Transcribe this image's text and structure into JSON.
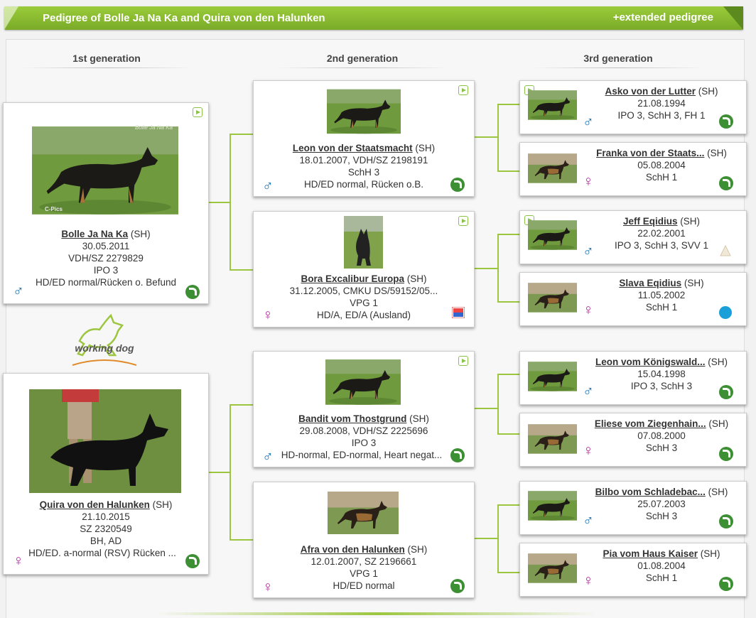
{
  "banner": {
    "title": "Pedigree of Bolle Ja Na Ka and Quira von den Halunken",
    "extended_link": "+extended pedigree"
  },
  "generations": [
    "1st generation",
    "2nd generation",
    "3rd generation"
  ],
  "logo": {
    "text": "working dog"
  },
  "gen1": [
    {
      "name": "Bolle Ja Na Ka",
      "tag": "(SH)",
      "lines": [
        "30.05.2011",
        "VDH/SZ 2279829",
        "IPO 3",
        "HD/ED normal/Rücken o. Befund"
      ],
      "sex": "♂",
      "photo_text": [
        "Bolle Ja Na Ka",
        "C-Pics"
      ]
    },
    {
      "name": "Quira von den Halunken",
      "tag": "(SH)",
      "lines": [
        "21.10.2015",
        "SZ 2320549",
        "BH, AD",
        "HD/ED. a-normal (RSV) Rücken ..."
      ],
      "sex": "♀"
    }
  ],
  "gen2": [
    {
      "name": "Leon von der Staatsmacht",
      "tag": "(SH)",
      "lines": [
        "18.01.2007, VDH/SZ 2198191",
        "SchH 3",
        "HD/ED normal, Rücken o.B."
      ],
      "sex": "♂"
    },
    {
      "name": "Bora Excalibur Europa",
      "tag": "(SH)",
      "lines": [
        "31.12.2005, CMKU DS/59152/05...",
        "VPG 1",
        "HD/A, ED/A (Ausland)"
      ],
      "sex": "♀"
    },
    {
      "name": "Bandit vom Thostgrund",
      "tag": "(SH)",
      "lines": [
        "29.08.2008, VDH/SZ 2225696",
        "IPO 3",
        "HD-normal, ED-normal, Heart negat..."
      ],
      "sex": "♂"
    },
    {
      "name": "Afra von den Halunken",
      "tag": "(SH)",
      "lines": [
        "12.01.2007, SZ 2196661",
        "VPG 1",
        "HD/ED normal"
      ],
      "sex": "♀"
    }
  ],
  "gen3": [
    {
      "name": "Asko von der Lutter",
      "tag": "(SH)",
      "lines": [
        "21.08.1994",
        "IPO 3, SchH 3, FH 1"
      ],
      "sex": "♂"
    },
    {
      "name": "Franka von der Staats...",
      "tag": "(SH)",
      "lines": [
        "05.08.2004",
        "SchH 1"
      ],
      "sex": "♀"
    },
    {
      "name": "Jeff Eqidius",
      "tag": "(SH)",
      "lines": [
        "22.02.2001",
        "IPO 3, SchH 3, SVV 1"
      ],
      "sex": "♂"
    },
    {
      "name": "Slava Eqidius",
      "tag": "(SH)",
      "lines": [
        "11.05.2002",
        "SchH 1"
      ],
      "sex": "♀"
    },
    {
      "name": "Leon vom Königswald...",
      "tag": "(SH)",
      "lines": [
        "15.04.1998",
        "IPO 3, SchH 3"
      ],
      "sex": "♂"
    },
    {
      "name": "Eliese vom Ziegenhain...",
      "tag": "(SH)",
      "lines": [
        "07.08.2000",
        "SchH 3"
      ],
      "sex": "♀"
    },
    {
      "name": "Bilbo vom Schladebac...",
      "tag": "(SH)",
      "lines": [
        "25.07.2003",
        "SchH 3"
      ],
      "sex": "♂"
    },
    {
      "name": "Pia vom Haus Kaiser",
      "tag": "(SH)",
      "lines": [
        "01.08.2004",
        "SchH 1"
      ],
      "sex": "♀"
    }
  ],
  "colors": {
    "accent_green": "#8bc34a",
    "male": "#1b75b5",
    "female": "#b52e9e",
    "go_button": "#3d8f33"
  }
}
